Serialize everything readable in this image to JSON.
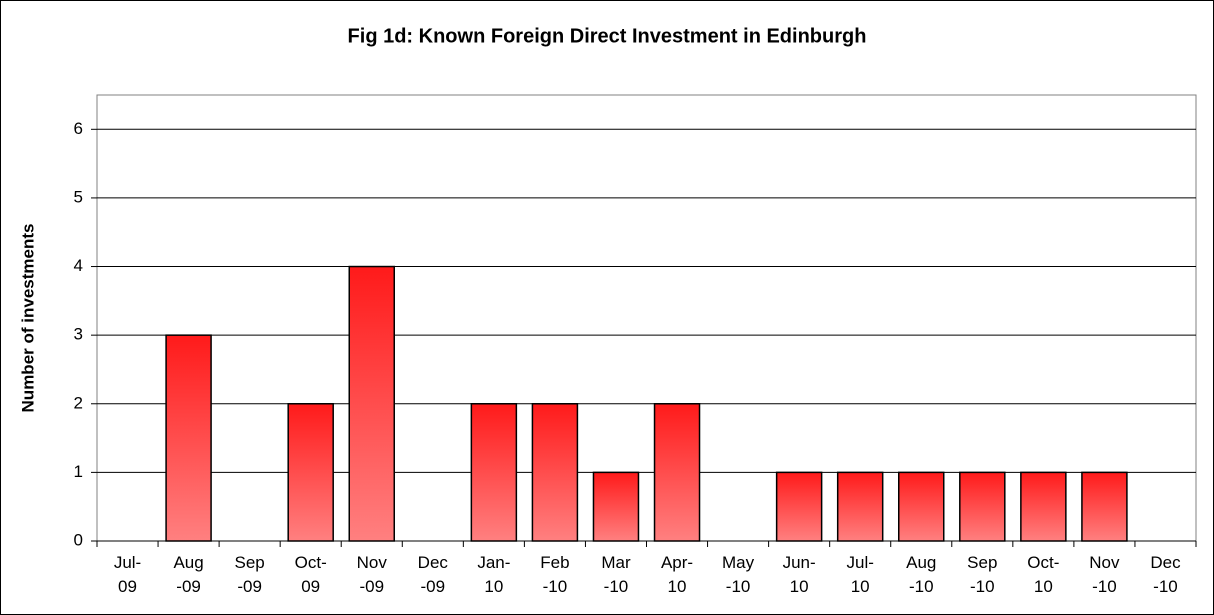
{
  "chart_data": {
    "type": "bar",
    "title": "Fig 1d: Known Foreign Direct Investment in Edinburgh",
    "y_label": "Number of investments",
    "categories": [
      "Jul-09",
      "Aug-09",
      "Sep-09",
      "Oct-09",
      "Nov-09",
      "Dec-09",
      "Jan-10",
      "Feb-10",
      "Mar-10",
      "Apr-10",
      "May-10",
      "Jun-10",
      "Jul-10",
      "Aug-10",
      "Sep-10",
      "Oct-10",
      "Nov-10",
      "Dec-10"
    ],
    "values": [
      0,
      3,
      0,
      2,
      4,
      0,
      2,
      2,
      1,
      2,
      0,
      1,
      1,
      1,
      1,
      1,
      1,
      0
    ],
    "color": "#ff1a1a",
    "ylim": [
      0,
      6.5
    ],
    "yticks": [
      0,
      1,
      2,
      3,
      4,
      5,
      6
    ],
    "grid": true
  }
}
